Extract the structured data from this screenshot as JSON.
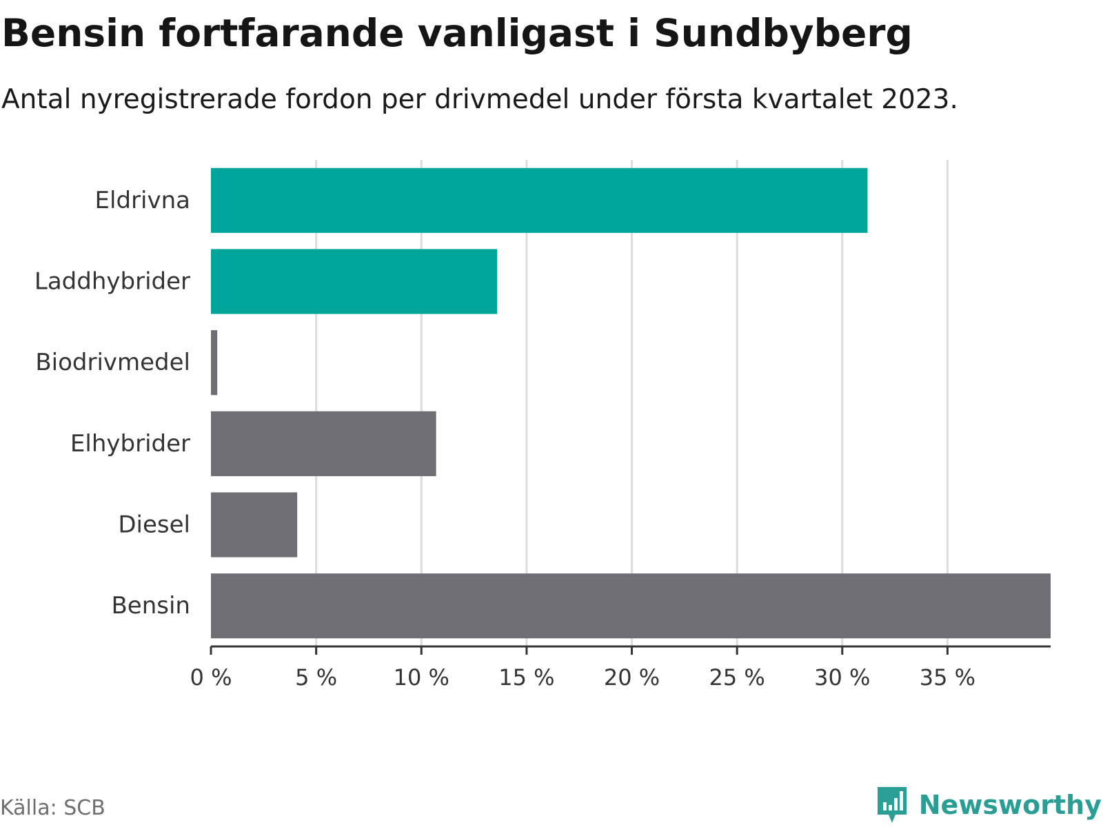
{
  "title": "Bensin fortfarande vanligast i Sundbyberg",
  "subtitle": "Antal nyregistrerade fordon per drivmedel under första kvartalet 2023.",
  "source": "Källa: SCB",
  "brand": {
    "name": "Newsworthy",
    "color": "#2a9d95"
  },
  "colors": {
    "highlight": "#00a59a",
    "default": "#6f6e74",
    "grid": "#dcdcdc",
    "axis": "#333333",
    "label": "#333333"
  },
  "chart_data": {
    "type": "bar",
    "orientation": "horizontal",
    "categories": [
      "Eldrivna",
      "Laddhybrider",
      "Biodrivmedel",
      "Elhybrider",
      "Diesel",
      "Bensin"
    ],
    "values": [
      31.2,
      13.6,
      0.3,
      10.7,
      4.1,
      39.9
    ],
    "highlighted": [
      true,
      true,
      false,
      false,
      false,
      false
    ],
    "xlim": [
      0,
      39.9
    ],
    "xticks": [
      0,
      5,
      10,
      15,
      20,
      25,
      30,
      35
    ],
    "xtick_labels": [
      "0 %",
      "5 %",
      "10 %",
      "15 %",
      "20 %",
      "25 %",
      "30 %",
      "35 %"
    ],
    "grid": true,
    "xlabel": "",
    "ylabel": ""
  }
}
